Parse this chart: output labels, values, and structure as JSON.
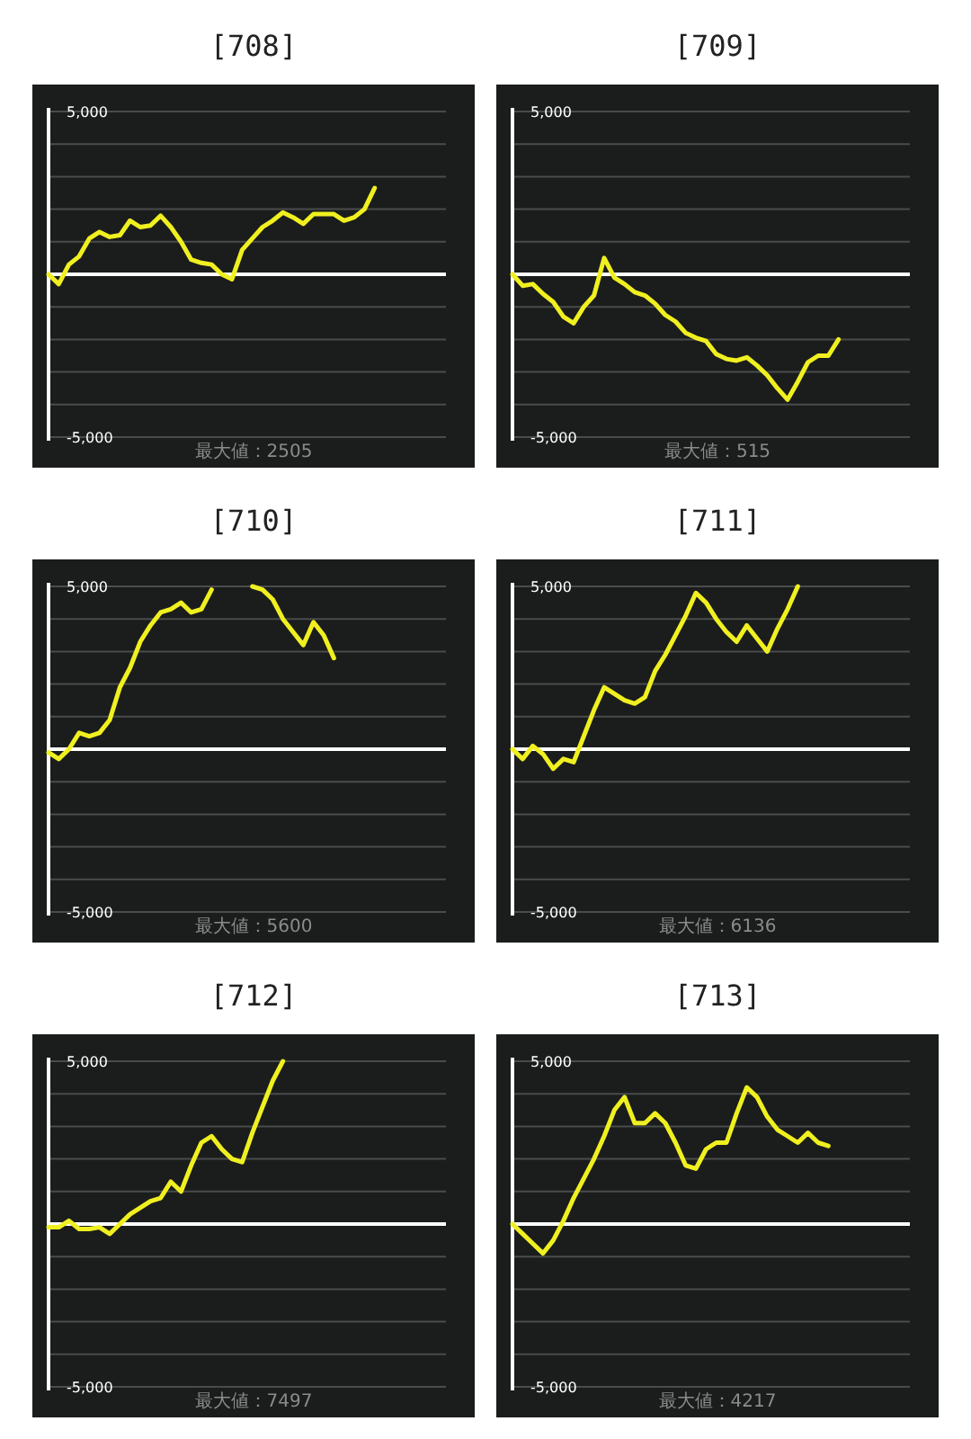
{
  "chart_data": [
    {
      "type": "line",
      "title": "[708]",
      "categories": [
        null,
        null,
        null,
        null,
        null,
        null,
        null,
        null,
        null,
        null,
        null,
        null,
        null,
        null,
        null,
        null,
        null,
        null,
        null,
        null,
        null,
        null,
        null,
        null,
        null,
        null,
        null,
        null,
        null,
        null,
        null,
        null,
        null,
        null,
        null,
        null,
        null,
        null,
        null,
        null
      ],
      "series": [
        {
          "color": "#f0f020",
          "values": [
            0,
            -300,
            300,
            550,
            1100,
            1300,
            1150,
            1200,
            1650,
            1450,
            1500,
            1800,
            1450,
            1000,
            450,
            350,
            300,
            0,
            -150,
            750,
            1100,
            1450,
            1650,
            1900,
            1750,
            1550,
            1850,
            1850,
            1850,
            1650,
            1750,
            2000,
            2650,
            null,
            null,
            null,
            null,
            null,
            null,
            null
          ]
        }
      ],
      "ylim": [
        -5000,
        5000
      ],
      "yticks": [
        {
          "value": 5000,
          "label": "5,000"
        },
        {
          "value": 4000,
          "label": null
        },
        {
          "value": 3000,
          "label": null
        },
        {
          "value": 2000,
          "label": null
        },
        {
          "value": 1000,
          "label": null
        },
        {
          "value": -1000,
          "label": null
        },
        {
          "value": -2000,
          "label": null
        },
        {
          "value": -3000,
          "label": null
        },
        {
          "value": -4000,
          "label": null
        },
        {
          "value": -5000,
          "label": "-5,000"
        }
      ],
      "grid": "y",
      "tick_labels": "y",
      "ref_lines": [
        {
          "axis": "y",
          "value": 0,
          "color": "#ffffff"
        }
      ],
      "annotations": [
        "最大値：2505"
      ]
    },
    {
      "type": "line",
      "title": "[709]",
      "categories": [
        null,
        null,
        null,
        null,
        null,
        null,
        null,
        null,
        null,
        null,
        null,
        null,
        null,
        null,
        null,
        null,
        null,
        null,
        null,
        null,
        null,
        null,
        null,
        null,
        null,
        null,
        null,
        null,
        null,
        null,
        null,
        null,
        null,
        null,
        null,
        null,
        null,
        null,
        null,
        null
      ],
      "series": [
        {
          "color": "#f0f020",
          "values": [
            0,
            -350,
            -300,
            -600,
            -850,
            -1300,
            -1500,
            -1000,
            -650,
            500,
            -100,
            -300,
            -550,
            -650,
            -900,
            -1250,
            -1450,
            -1800,
            -1950,
            -2050,
            -2450,
            -2600,
            -2650,
            -2550,
            -2800,
            -3100,
            -3500,
            -3850,
            -3300,
            -2700,
            -2500,
            -2500,
            -2000,
            null,
            null,
            null,
            null,
            null,
            null,
            null
          ]
        }
      ],
      "ylim": [
        -5000,
        5000
      ],
      "yticks": [
        {
          "value": 5000,
          "label": "5,000"
        },
        {
          "value": 4000,
          "label": null
        },
        {
          "value": 3000,
          "label": null
        },
        {
          "value": 2000,
          "label": null
        },
        {
          "value": 1000,
          "label": null
        },
        {
          "value": -1000,
          "label": null
        },
        {
          "value": -2000,
          "label": null
        },
        {
          "value": -3000,
          "label": null
        },
        {
          "value": -4000,
          "label": null
        },
        {
          "value": -5000,
          "label": "-5,000"
        }
      ],
      "grid": "y",
      "tick_labels": "y",
      "ref_lines": [
        {
          "axis": "y",
          "value": 0,
          "color": "#ffffff"
        }
      ],
      "annotations": [
        "最大値：515"
      ]
    },
    {
      "type": "line",
      "title": "[710]",
      "categories": [
        null,
        null,
        null,
        null,
        null,
        null,
        null,
        null,
        null,
        null,
        null,
        null,
        null,
        null,
        null,
        null,
        null,
        null,
        null,
        null,
        null,
        null,
        null,
        null,
        null,
        null,
        null,
        null,
        null,
        null,
        null,
        null,
        null,
        null,
        null,
        null,
        null,
        null,
        null,
        null
      ],
      "series": [
        {
          "color": "#f0f020",
          "values": [
            -100,
            -300,
            0,
            500,
            400,
            500,
            900,
            1900,
            2500,
            3300,
            3800,
            4200,
            4300,
            4500,
            4200,
            4300,
            4900,
            null,
            null,
            null,
            5000,
            4900,
            4600,
            4000,
            3600,
            3200,
            3900,
            3500,
            2800,
            null,
            null,
            null,
            null,
            null,
            null,
            null,
            null,
            null,
            null,
            null
          ]
        }
      ],
      "ylim": [
        -5000,
        5000
      ],
      "yticks": [
        {
          "value": 5000,
          "label": "5,000"
        },
        {
          "value": 4000,
          "label": null
        },
        {
          "value": 3000,
          "label": null
        },
        {
          "value": 2000,
          "label": null
        },
        {
          "value": 1000,
          "label": null
        },
        {
          "value": -1000,
          "label": null
        },
        {
          "value": -2000,
          "label": null
        },
        {
          "value": -3000,
          "label": null
        },
        {
          "value": -4000,
          "label": null
        },
        {
          "value": -5000,
          "label": "-5,000"
        }
      ],
      "grid": "y",
      "tick_labels": "y",
      "ref_lines": [
        {
          "axis": "y",
          "value": 0,
          "color": "#ffffff"
        }
      ],
      "annotations": [
        "最大値：5600"
      ]
    },
    {
      "type": "line",
      "title": "[711]",
      "categories": [
        null,
        null,
        null,
        null,
        null,
        null,
        null,
        null,
        null,
        null,
        null,
        null,
        null,
        null,
        null,
        null,
        null,
        null,
        null,
        null,
        null,
        null,
        null,
        null,
        null,
        null,
        null,
        null,
        null,
        null,
        null,
        null,
        null,
        null,
        null,
        null,
        null,
        null,
        null,
        null
      ],
      "series": [
        {
          "color": "#f0f020",
          "values": [
            0,
            -300,
            100,
            -150,
            -600,
            -300,
            -400,
            400,
            1200,
            1900,
            1700,
            1500,
            1400,
            1600,
            2400,
            2900,
            3500,
            4100,
            4800,
            4500,
            4000,
            3600,
            3300,
            3800,
            3400,
            3000,
            3700,
            4300,
            5000,
            null,
            null,
            null,
            null,
            null,
            null,
            null,
            null,
            null,
            null,
            null
          ]
        }
      ],
      "ylim": [
        -5000,
        5000
      ],
      "yticks": [
        {
          "value": 5000,
          "label": "5,000"
        },
        {
          "value": 4000,
          "label": null
        },
        {
          "value": 3000,
          "label": null
        },
        {
          "value": 2000,
          "label": null
        },
        {
          "value": 1000,
          "label": null
        },
        {
          "value": -1000,
          "label": null
        },
        {
          "value": -2000,
          "label": null
        },
        {
          "value": -3000,
          "label": null
        },
        {
          "value": -4000,
          "label": null
        },
        {
          "value": -5000,
          "label": "-5,000"
        }
      ],
      "grid": "y",
      "tick_labels": "y",
      "ref_lines": [
        {
          "axis": "y",
          "value": 0,
          "color": "#ffffff"
        }
      ],
      "annotations": [
        "最大値：6136"
      ]
    },
    {
      "type": "line",
      "title": "[712]",
      "categories": [
        null,
        null,
        null,
        null,
        null,
        null,
        null,
        null,
        null,
        null,
        null,
        null,
        null,
        null,
        null,
        null,
        null,
        null,
        null,
        null,
        null,
        null,
        null,
        null,
        null,
        null,
        null,
        null,
        null,
        null,
        null,
        null,
        null,
        null,
        null,
        null,
        null,
        null,
        null,
        null
      ],
      "series": [
        {
          "color": "#f0f020",
          "values": [
            -100,
            -100,
            100,
            -150,
            -150,
            -100,
            -300,
            0,
            300,
            500,
            700,
            800,
            1300,
            1000,
            1800,
            2500,
            2700,
            2300,
            2000,
            1900,
            2800,
            3600,
            4400,
            5000,
            null,
            null,
            null,
            null,
            null,
            null,
            null,
            null,
            null,
            null,
            null,
            null,
            null,
            null,
            null,
            null
          ]
        }
      ],
      "ylim": [
        -5000,
        5000
      ],
      "yticks": [
        {
          "value": 5000,
          "label": "5,000"
        },
        {
          "value": 4000,
          "label": null
        },
        {
          "value": 3000,
          "label": null
        },
        {
          "value": 2000,
          "label": null
        },
        {
          "value": 1000,
          "label": null
        },
        {
          "value": -1000,
          "label": null
        },
        {
          "value": -2000,
          "label": null
        },
        {
          "value": -3000,
          "label": null
        },
        {
          "value": -4000,
          "label": null
        },
        {
          "value": -5000,
          "label": "-5,000"
        }
      ],
      "grid": "y",
      "tick_labels": "y",
      "ref_lines": [
        {
          "axis": "y",
          "value": 0,
          "color": "#ffffff"
        }
      ],
      "annotations": [
        "最大値：7497"
      ]
    },
    {
      "type": "line",
      "title": "[713]",
      "categories": [
        null,
        null,
        null,
        null,
        null,
        null,
        null,
        null,
        null,
        null,
        null,
        null,
        null,
        null,
        null,
        null,
        null,
        null,
        null,
        null,
        null,
        null,
        null,
        null,
        null,
        null,
        null,
        null,
        null,
        null,
        null,
        null,
        null,
        null,
        null,
        null,
        null,
        null,
        null,
        null
      ],
      "series": [
        {
          "color": "#f0f020",
          "values": [
            0,
            -300,
            -600,
            -900,
            -500,
            100,
            800,
            1400,
            2000,
            2700,
            3500,
            3900,
            3100,
            3100,
            3400,
            3100,
            2500,
            1800,
            1700,
            2300,
            2500,
            2500,
            3400,
            4200,
            3900,
            3300,
            2900,
            2700,
            2500,
            2800,
            2500,
            2400,
            null,
            null,
            null,
            null,
            null,
            null,
            null,
            null
          ]
        }
      ],
      "ylim": [
        -5000,
        5000
      ],
      "yticks": [
        {
          "value": 5000,
          "label": "5,000"
        },
        {
          "value": 4000,
          "label": null
        },
        {
          "value": 3000,
          "label": null
        },
        {
          "value": 2000,
          "label": null
        },
        {
          "value": 1000,
          "label": null
        },
        {
          "value": -1000,
          "label": null
        },
        {
          "value": -2000,
          "label": null
        },
        {
          "value": -3000,
          "label": null
        },
        {
          "value": -4000,
          "label": null
        },
        {
          "value": -5000,
          "label": "-5,000"
        }
      ],
      "grid": "y",
      "tick_labels": "y",
      "ref_lines": [
        {
          "axis": "y",
          "value": 0,
          "color": "#ffffff"
        }
      ],
      "annotations": [
        "最大値：4217"
      ]
    }
  ]
}
